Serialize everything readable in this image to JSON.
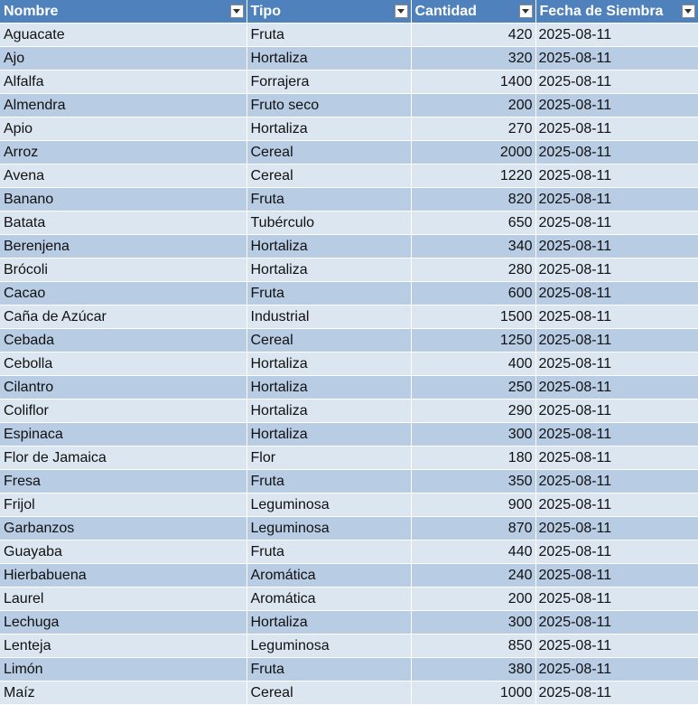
{
  "table": {
    "headers": [
      "Nombre",
      "Tipo",
      "Cantidad",
      "Fecha de Siembra"
    ],
    "rows": [
      [
        "Aguacate",
        "Fruta",
        "420",
        "2025-08-11"
      ],
      [
        "Ajo",
        "Hortaliza",
        "320",
        "2025-08-11"
      ],
      [
        "Alfalfa",
        "Forrajera",
        "1400",
        "2025-08-11"
      ],
      [
        "Almendra",
        "Fruto seco",
        "200",
        "2025-08-11"
      ],
      [
        "Apio",
        "Hortaliza",
        "270",
        "2025-08-11"
      ],
      [
        "Arroz",
        "Cereal",
        "2000",
        "2025-08-11"
      ],
      [
        "Avena",
        "Cereal",
        "1220",
        "2025-08-11"
      ],
      [
        "Banano",
        "Fruta",
        "820",
        "2025-08-11"
      ],
      [
        "Batata",
        "Tubérculo",
        "650",
        "2025-08-11"
      ],
      [
        "Berenjena",
        "Hortaliza",
        "340",
        "2025-08-11"
      ],
      [
        "Brócoli",
        "Hortaliza",
        "280",
        "2025-08-11"
      ],
      [
        "Cacao",
        "Fruta",
        "600",
        "2025-08-11"
      ],
      [
        "Caña de Azúcar",
        "Industrial",
        "1500",
        "2025-08-11"
      ],
      [
        "Cebada",
        "Cereal",
        "1250",
        "2025-08-11"
      ],
      [
        "Cebolla",
        "Hortaliza",
        "400",
        "2025-08-11"
      ],
      [
        "Cilantro",
        "Hortaliza",
        "250",
        "2025-08-11"
      ],
      [
        "Coliflor",
        "Hortaliza",
        "290",
        "2025-08-11"
      ],
      [
        "Espinaca",
        "Hortaliza",
        "300",
        "2025-08-11"
      ],
      [
        "Flor de Jamaica",
        "Flor",
        "180",
        "2025-08-11"
      ],
      [
        "Fresa",
        "Fruta",
        "350",
        "2025-08-11"
      ],
      [
        "Frijol",
        "Leguminosa",
        "900",
        "2025-08-11"
      ],
      [
        "Garbanzos",
        "Leguminosa",
        "870",
        "2025-08-11"
      ],
      [
        "Guayaba",
        "Fruta",
        "440",
        "2025-08-11"
      ],
      [
        "Hierbabuena",
        "Aromática",
        "240",
        "2025-08-11"
      ],
      [
        "Laurel",
        "Aromática",
        "200",
        "2025-08-11"
      ],
      [
        "Lechuga",
        "Hortaliza",
        "300",
        "2025-08-11"
      ],
      [
        "Lenteja",
        "Leguminosa",
        "850",
        "2025-08-11"
      ],
      [
        "Limón",
        "Fruta",
        "380",
        "2025-08-11"
      ],
      [
        "Maíz",
        "Cereal",
        "1000",
        "2025-08-11"
      ]
    ]
  },
  "colors": {
    "header_bg": "#4f81bd",
    "header_text": "#ffffff",
    "row_light": "#dce6f1",
    "row_dark": "#b8cce4"
  },
  "icons": {
    "filter": "chevron-down-icon"
  }
}
